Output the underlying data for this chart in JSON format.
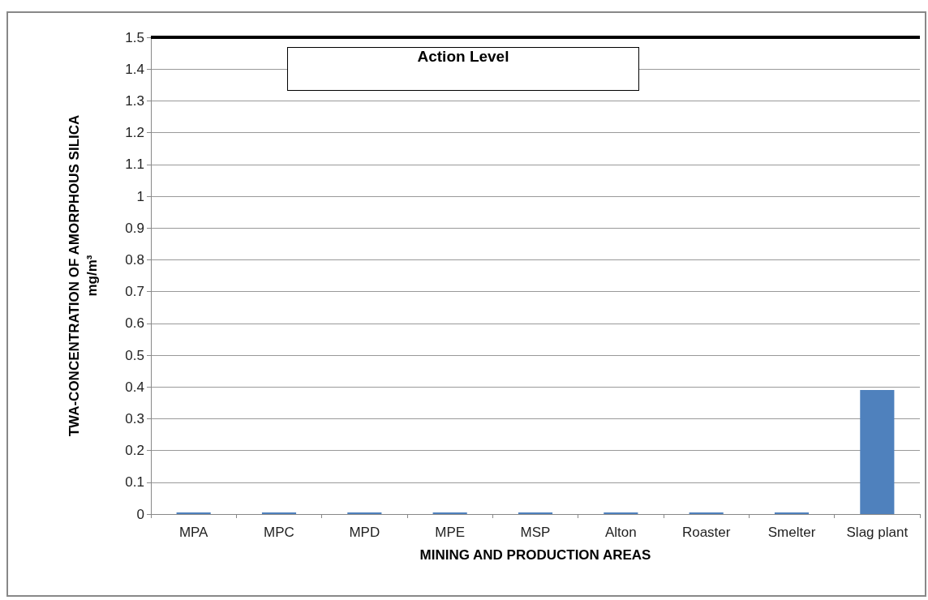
{
  "chart_data": {
    "type": "bar",
    "xlabel": "MINING AND PRODUCTION AREAS",
    "ylabel": "TWA-CONCENTRATION OF AMORPHOUS SILICA\nmg/m³",
    "categories": [
      "MPA",
      "MPC",
      "MPD",
      "MPE",
      "MSP",
      "Alton",
      "Roaster",
      "Smelter",
      "Slag plant"
    ],
    "values": [
      0.005,
      0.005,
      0.005,
      0.005,
      0.005,
      0.005,
      0.005,
      0.005,
      0.39
    ],
    "color": "#4f81bd",
    "ylim": [
      0,
      1.5
    ],
    "yticks": [
      0,
      0.1,
      0.2,
      0.3,
      0.4,
      0.5,
      0.6,
      0.7,
      0.8,
      0.9,
      1,
      1.1,
      1.2,
      1.3,
      1.4,
      1.5
    ],
    "grid": "y",
    "ref_lines": [
      {
        "axis": "y",
        "value": 1.5,
        "label": "Action Level",
        "color": "#000000"
      }
    ]
  }
}
